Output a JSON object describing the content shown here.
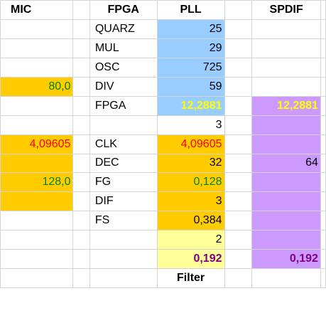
{
  "colors": {
    "blue": "#99ccff",
    "orange": "#ffcc00",
    "light_yellow": "#ffff99",
    "purple": "#cc99ff",
    "text_yellow": "#ffff00",
    "text_red": "#ff0000",
    "text_green": "#008000",
    "text_purple": "#800080",
    "grid": "#d4d4d4"
  },
  "headers": {
    "mic": "MIC",
    "fpga": "FPGA",
    "pll": "PLL",
    "spdif": "SPDIF"
  },
  "rows": [
    {
      "b": "",
      "d": "QUARZ",
      "e": "25",
      "g": ""
    },
    {
      "b": "",
      "d": "MUL",
      "e": "29",
      "g": ""
    },
    {
      "b": "",
      "d": "OSC",
      "e": "725",
      "g": ""
    },
    {
      "b": "80,0",
      "d": "DIV",
      "e": "59",
      "g": ""
    },
    {
      "b": "",
      "d": "FPGA",
      "e": "12,2881",
      "g": "12,2881"
    },
    {
      "b": "",
      "d": "",
      "e": "3",
      "g": ""
    },
    {
      "b": "4,09605",
      "d": "CLK",
      "e": "4,09605",
      "g": ""
    },
    {
      "b": "",
      "d": "DEC",
      "e": "32",
      "g": "64"
    },
    {
      "b": "128,0",
      "d": "FG",
      "e": "0,128",
      "g": ""
    },
    {
      "b": "",
      "d": "DIF",
      "e": "3",
      "g": ""
    },
    {
      "b": "",
      "d": "FS",
      "e": "0,384",
      "g": ""
    },
    {
      "b": "",
      "d": "",
      "e": "2",
      "g": ""
    },
    {
      "b": "",
      "d": "",
      "e": "0,192",
      "g": "0,192"
    }
  ],
  "footer": {
    "filter": "Filter"
  }
}
